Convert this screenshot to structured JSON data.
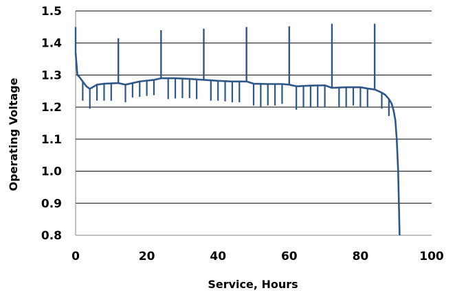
{
  "chart_data": {
    "type": "line",
    "title": "",
    "xlabel": "Service, Hours",
    "ylabel": "Operating Voltage",
    "xlim": [
      0,
      100
    ],
    "ylim": [
      0.8,
      1.5
    ],
    "xticks": [
      0,
      20,
      40,
      60,
      80,
      100
    ],
    "xtick_labels": [
      "0",
      "20",
      "40",
      "60",
      "80",
      "100"
    ],
    "yticks": [
      0.8,
      0.9,
      1.0,
      1.1,
      1.2,
      1.3,
      1.4,
      1.5
    ],
    "ytick_labels": [
      "0.8",
      "0.9",
      "1.0",
      "1.1",
      "1.2",
      "1.3",
      "1.4",
      "1.5"
    ],
    "grid": "horizontal",
    "legend": "none",
    "line_color": "#2e5687",
    "series": [
      {
        "baseline": {
          "x": [
            0,
            0.5,
            1,
            2,
            3,
            4,
            6,
            8,
            10,
            12,
            14,
            18,
            22,
            24,
            28,
            32,
            36,
            40,
            44,
            48,
            50,
            54,
            58,
            60,
            62,
            66,
            70,
            72,
            76,
            80,
            82,
            84,
            86,
            87,
            88,
            88.8,
            89.3,
            89.8,
            90.2,
            90.6,
            91
          ],
          "y": [
            1.37,
            1.3,
            1.295,
            1.28,
            1.265,
            1.257,
            1.27,
            1.273,
            1.274,
            1.275,
            1.27,
            1.28,
            1.285,
            1.29,
            1.29,
            1.288,
            1.285,
            1.282,
            1.28,
            1.28,
            1.273,
            1.272,
            1.272,
            1.27,
            1.265,
            1.267,
            1.268,
            1.26,
            1.262,
            1.262,
            1.258,
            1.255,
            1.245,
            1.238,
            1.225,
            1.21,
            1.19,
            1.16,
            1.1,
            1.0,
            0.8
          ]
        },
        "upward_spikes": [
          {
            "x": 0,
            "y": 1.45
          },
          {
            "x": 12,
            "y": 1.415
          },
          {
            "x": 24,
            "y": 1.44
          },
          {
            "x": 36,
            "y": 1.445
          },
          {
            "x": 48,
            "y": 1.45
          },
          {
            "x": 60,
            "y": 1.452
          },
          {
            "x": 72,
            "y": 1.46
          },
          {
            "x": 84,
            "y": 1.46
          }
        ],
        "downward_spikes": [
          {
            "x": 2,
            "y": 1.22
          },
          {
            "x": 4,
            "y": 1.195
          },
          {
            "x": 6,
            "y": 1.22
          },
          {
            "x": 8,
            "y": 1.22
          },
          {
            "x": 10,
            "y": 1.22
          },
          {
            "x": 14,
            "y": 1.215
          },
          {
            "x": 16,
            "y": 1.23
          },
          {
            "x": 18,
            "y": 1.232
          },
          {
            "x": 20,
            "y": 1.235
          },
          {
            "x": 22,
            "y": 1.237
          },
          {
            "x": 26,
            "y": 1.225
          },
          {
            "x": 28,
            "y": 1.227
          },
          {
            "x": 30,
            "y": 1.228
          },
          {
            "x": 32,
            "y": 1.228
          },
          {
            "x": 34,
            "y": 1.225
          },
          {
            "x": 38,
            "y": 1.22
          },
          {
            "x": 40,
            "y": 1.22
          },
          {
            "x": 42,
            "y": 1.218
          },
          {
            "x": 44,
            "y": 1.215
          },
          {
            "x": 46,
            "y": 1.215
          },
          {
            "x": 50,
            "y": 1.205
          },
          {
            "x": 52,
            "y": 1.2
          },
          {
            "x": 54,
            "y": 1.205
          },
          {
            "x": 56,
            "y": 1.205
          },
          {
            "x": 58,
            "y": 1.21
          },
          {
            "x": 62,
            "y": 1.192
          },
          {
            "x": 64,
            "y": 1.198
          },
          {
            "x": 66,
            "y": 1.198
          },
          {
            "x": 68,
            "y": 1.2
          },
          {
            "x": 70,
            "y": 1.2
          },
          {
            "x": 74,
            "y": 1.2
          },
          {
            "x": 76,
            "y": 1.2
          },
          {
            "x": 78,
            "y": 1.205
          },
          {
            "x": 80,
            "y": 1.2
          },
          {
            "x": 82,
            "y": 1.2
          },
          {
            "x": 86,
            "y": 1.195
          },
          {
            "x": 88,
            "y": 1.172
          }
        ]
      }
    ]
  }
}
